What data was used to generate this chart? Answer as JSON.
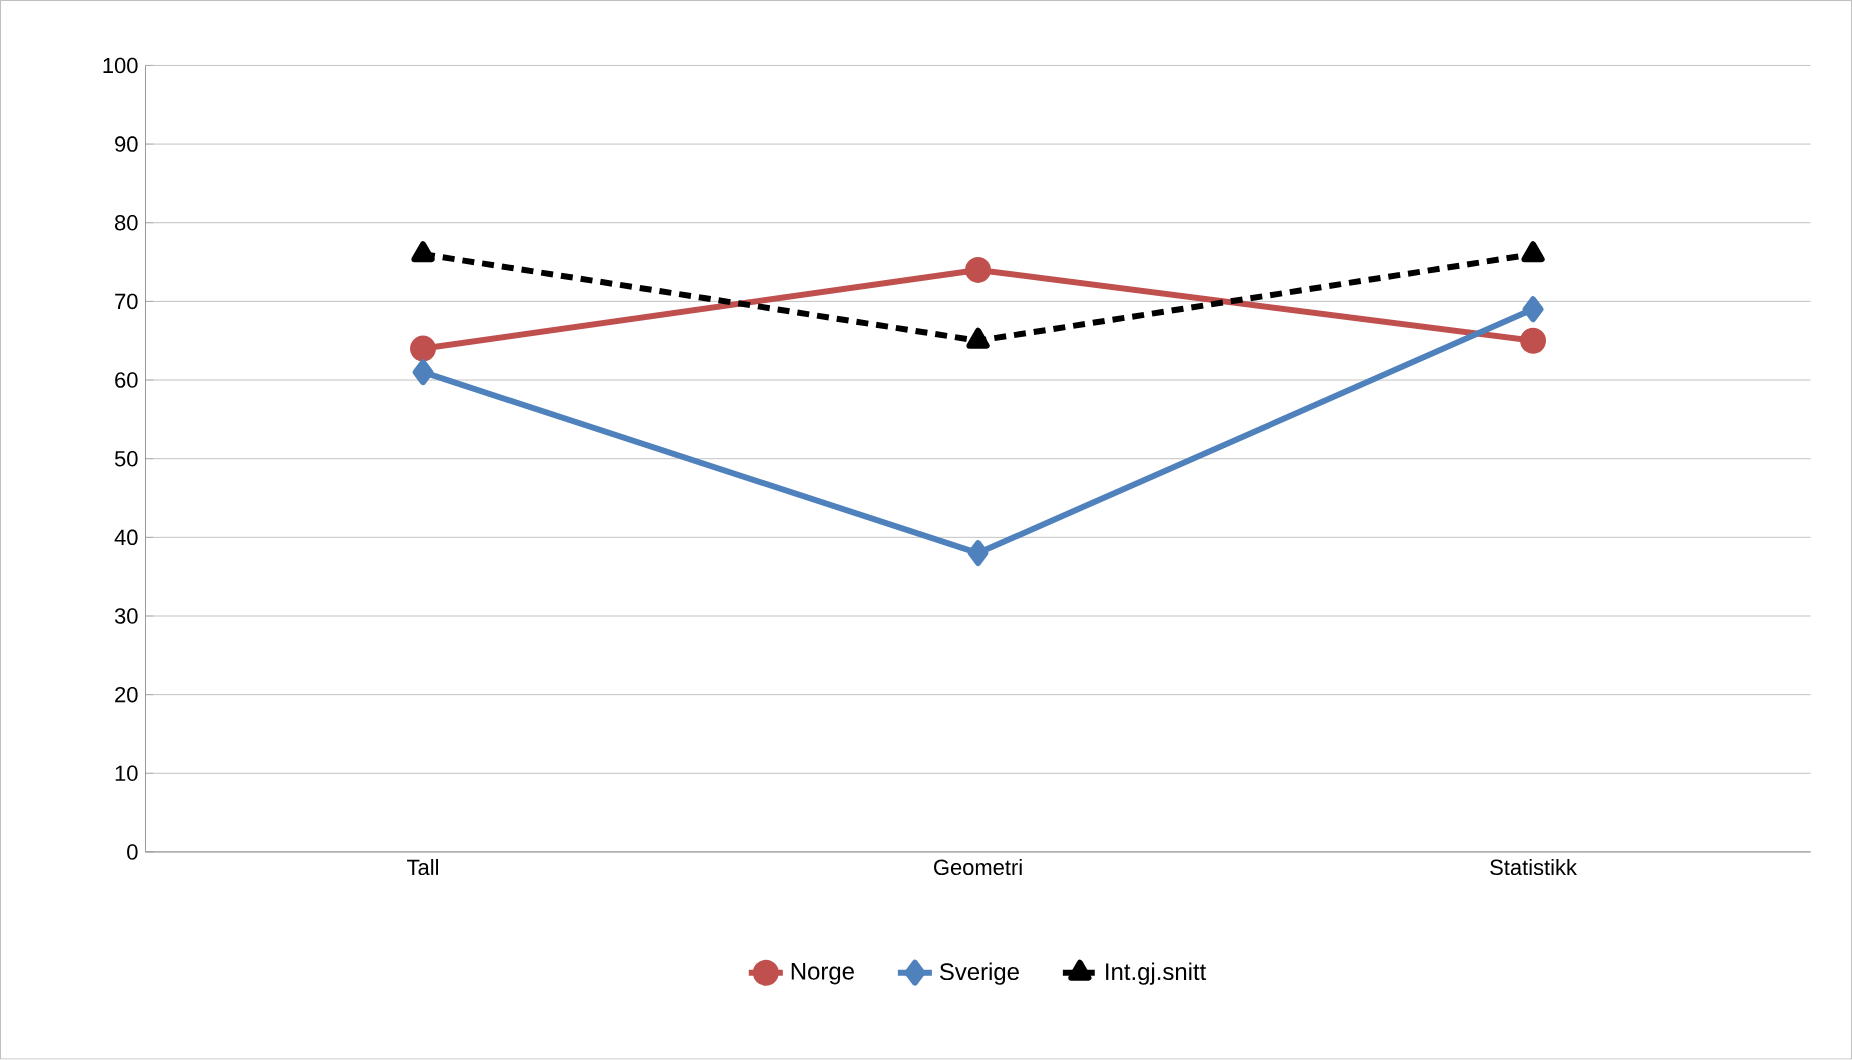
{
  "chart_data": {
    "type": "line",
    "categories": [
      "Tall",
      "Geometri",
      "Statistikk"
    ],
    "series": [
      {
        "name": "Norge",
        "color": "#c0504d",
        "values": [
          64,
          74,
          65
        ],
        "marker": "circle",
        "line_style": "solid"
      },
      {
        "name": "Sverige",
        "color": "#4f81bd",
        "values": [
          61,
          38,
          69
        ],
        "marker": "diamond",
        "line_style": "solid"
      },
      {
        "name": "Int.gj.snitt",
        "color": "#000000",
        "values": [
          76,
          65,
          76
        ],
        "marker": "triangle",
        "line_style": "dashed"
      }
    ],
    "ylim": [
      0,
      100
    ],
    "yticks": [
      0,
      10,
      20,
      30,
      40,
      50,
      60,
      70,
      80,
      90,
      100
    ],
    "grid": "y",
    "legend": "bottom"
  }
}
